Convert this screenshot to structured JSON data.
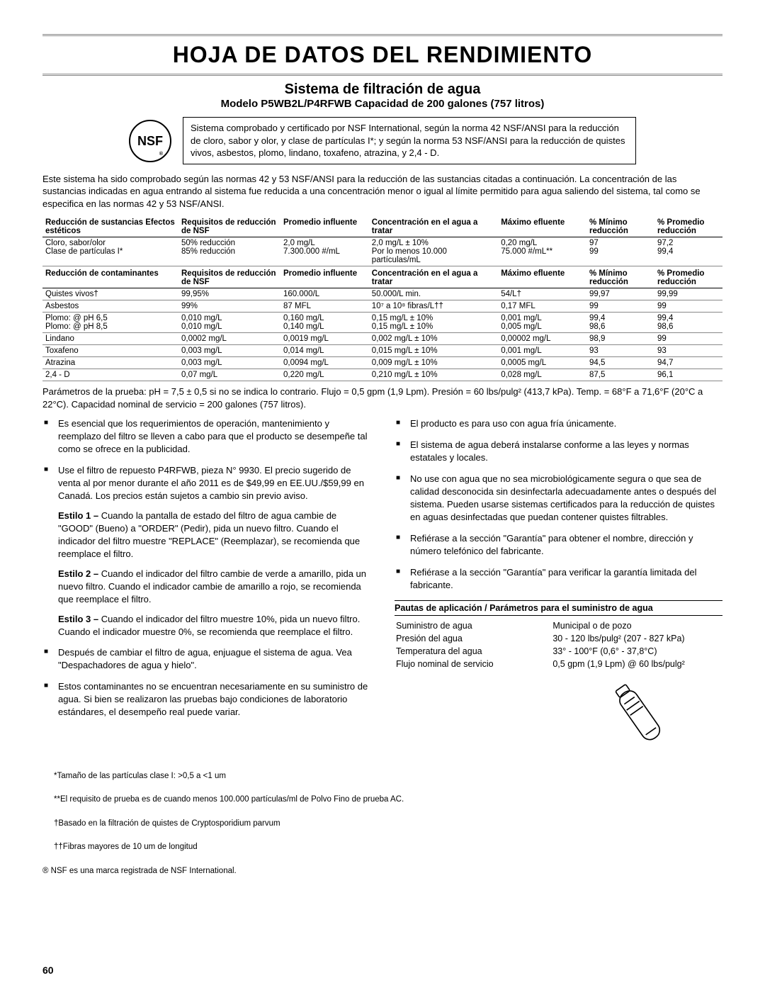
{
  "title": "HOJA DE DATOS DEL RENDIMIENTO",
  "subtitle": "Sistema de filtración de agua",
  "subtitle2": "Modelo P5WB2L/P4RFWB Capacidad de 200 galones (757 litros)",
  "nsf_label": "NSF",
  "nsf_box": "Sistema comprobado y certificado por NSF International, según la norma 42 NSF/ANSI para la reducción de cloro, sabor y olor, y clase de partículas I*; y según la norma 53 NSF/ANSI para la reducción de quistes vivos, asbestos, plomo, lindano, toxafeno, atrazina, y 2,4 - D.",
  "intro": "Este sistema ha sido comprobado según las normas 42 y 53 NSF/ANSI para la reducción de las sustancias citadas a continuación. La concentración de las sustancias indicadas en agua entrando al sistema fue reducida a una concentración menor o igual al límite permitido para agua saliendo del sistema, tal como se especifica en las normas 42 y 53 NSF/ANSI.",
  "head1": [
    "Reducción de sustancias Efectos estéticos",
    "Requisitos de reducción de NSF",
    "Promedio influente",
    "Concentración en el agua a tratar",
    "Máximo efluente",
    "% Mínimo reducción",
    "% Promedio reducción"
  ],
  "rows1": [
    [
      "Cloro, sabor/olor\nClase de partículas I*",
      "50% reducción\n85% reducción",
      "2,0 mg/L\n7.300.000 #/mL",
      "2,0 mg/L ± 10%\nPor lo menos 10.000 partículas/mL",
      "0,20 mg/L\n75.000 #/mL**",
      "97\n99",
      "97,2\n99,4"
    ]
  ],
  "head2": [
    "Reducción de contaminantes",
    "Requisitos de reducción de NSF",
    "Promedio influente",
    "Concentración en el agua a tratar",
    "Máximo efluente",
    "% Mínimo reducción",
    "% Promedio reducción"
  ],
  "rows2": [
    [
      "Quistes vivos†",
      "99,95%",
      "160.000/L",
      "50.000/L min.",
      "54/L†",
      "99,97",
      "99,99"
    ],
    [
      "Asbestos",
      "99%",
      "87 MFL",
      "10⁷ a 10⁸ fibras/L††",
      "0,17 MFL",
      "99",
      "99"
    ],
    [
      "Plomo: @ pH 6,5\nPlomo: @ pH 8,5",
      "0,010 mg/L\n0,010 mg/L",
      "0,160 mg/L\n0,140 mg/L",
      "0,15 mg/L ± 10%\n0,15 mg/L ± 10%",
      "0,001 mg/L\n0,005 mg/L",
      "99,4\n98,6",
      "99,4\n98,6"
    ],
    [
      "Lindano",
      "0,0002 mg/L",
      "0,0019 mg/L",
      "0,002 mg/L ± 10%",
      "0,00002 mg/L",
      "98,9",
      "99"
    ],
    [
      "Toxafeno",
      "0,003 mg/L",
      "0,014 mg/L",
      "0,015 mg/L ± 10%",
      "0,001 mg/L",
      "93",
      "93"
    ],
    [
      "Atrazina",
      "0,003 mg/L",
      "0,0094 mg/L",
      "0,009 mg/L ± 10%",
      "0,0005 mg/L",
      "94,5",
      "94,7"
    ],
    [
      "2,4 - D",
      "0,07 mg/L",
      "0,220 mg/L",
      "0,210 mg/L ± 10%",
      "0,028 mg/L",
      "87,5",
      "96,1"
    ]
  ],
  "params": "Parámetros de la prueba: pH = 7,5 ± 0,5 si no se indica lo contrario. Flujo = 0,5 gpm (1,9 Lpm). Presión = 60 lbs/pulg² (413,7 kPa). Temp. = 68°F a 71,6°F (20°C a 22°C). Capacidad nominal de servicio = 200 galones (757 litros).",
  "left_bullets": [
    {
      "text": "Es esencial que los requerimientos de operación, mantenimiento y reemplazo del filtro se lleven a cabo para que el producto se desempeñe tal como se ofrece en la publicidad."
    },
    {
      "text": "Use el filtro de repuesto P4RFWB, pieza N° 9930. El precio sugerido de venta al por menor durante el año 2011 es de $49,99 en EE.UU./$59,99 en Canadá. Los precios están sujetos a cambio sin previo aviso.",
      "subs": [
        "<b>Estilo 1 –</b> Cuando la pantalla de estado del filtro de agua cambie de \"GOOD\" (Bueno) a \"ORDER\" (Pedir), pida un nuevo filtro. Cuando el indicador del filtro muestre \"REPLACE\" (Reemplazar), se recomienda que reemplace el filtro.",
        "<b>Estilo 2 –</b> Cuando el indicador del filtro cambie de verde a amarillo, pida un nuevo filtro. Cuando el indicador cambie de amarillo a rojo, se recomienda que reemplace el filtro.",
        "<b>Estilo 3 –</b> Cuando el indicador del filtro muestre 10%, pida un nuevo filtro. Cuando el indicador muestre 0%, se recomienda que reemplace el filtro."
      ]
    },
    {
      "text": "Después de cambiar el filtro de agua, enjuague el sistema de agua. Vea \"Despachadores de agua y hielo\"."
    },
    {
      "text": "Estos contaminantes no se encuentran necesariamente en su suministro de agua. Si bien se realizaron las pruebas bajo condiciones de laboratorio estándares, el desempeño real puede variar."
    }
  ],
  "right_bullets": [
    {
      "text": "El producto es para uso con agua fría únicamente."
    },
    {
      "text": "El sistema de agua deberá instalarse conforme a las leyes y normas estatales y locales."
    },
    {
      "text": "No use con agua que no sea microbiológicamente segura o que sea de calidad desconocida sin desinfectarla adecuadamente antes o después del sistema. Pueden usarse sistemas certificados para la reducción de quistes en aguas desinfectadas que puedan contener quistes filtrables."
    },
    {
      "text": "Refiérase a la sección \"Garantía\" para obtener el nombre, dirección y número telefónico del fabricante."
    },
    {
      "text": "Refiérase a la sección \"Garantía\" para verificar la garantía limitada del fabricante."
    }
  ],
  "pautas_head": "Pautas de aplicación / Parámetros para el suministro de agua",
  "pautas": [
    [
      "Suministro de agua",
      "Municipal o de pozo"
    ],
    [
      "Presión del agua",
      "30 - 120 lbs/pulg² (207 - 827 kPa)"
    ],
    [
      "Temperatura del agua",
      "33° - 100°F (0,6° - 37,8°C)"
    ],
    [
      "Flujo nominal de servicio",
      "0,5 gpm (1,9 Lpm) @ 60 lbs/pulg²"
    ]
  ],
  "footnotes": [
    "*Tamaño de las partículas clase I: >0,5 a <1 um",
    "**El requisito de prueba es de cuando menos 100.000 partículas/ml de Polvo Fino de prueba AC.",
    "†Basado en la filtración de quistes de Cryptosporidium parvum",
    "††Fibras mayores de 10 um de longitud",
    "® NSF es una marca registrada de NSF International."
  ],
  "page_number": "60"
}
